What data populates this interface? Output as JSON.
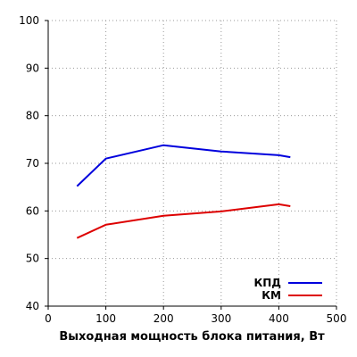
{
  "chart_data": {
    "type": "line",
    "title": "",
    "xlabel": "Выходная мощность блока питания, Вт",
    "ylabel": "",
    "xlim": [
      0,
      500
    ],
    "ylim": [
      40,
      100
    ],
    "xticks": [
      0,
      100,
      200,
      300,
      400,
      500
    ],
    "yticks": [
      40,
      50,
      60,
      70,
      80,
      90,
      100
    ],
    "grid": true,
    "legend_position": "bottom-right",
    "series": [
      {
        "name": "КПД",
        "color": "#0000dd",
        "x": [
          50,
          100,
          200,
          300,
          400,
          420
        ],
        "y": [
          65.2,
          71.0,
          73.8,
          72.5,
          71.7,
          71.3
        ]
      },
      {
        "name": "КМ",
        "color": "#dd0000",
        "x": [
          50,
          100,
          200,
          300,
          400,
          420
        ],
        "y": [
          54.3,
          57.1,
          59.0,
          59.9,
          61.4,
          61.0
        ]
      }
    ]
  }
}
